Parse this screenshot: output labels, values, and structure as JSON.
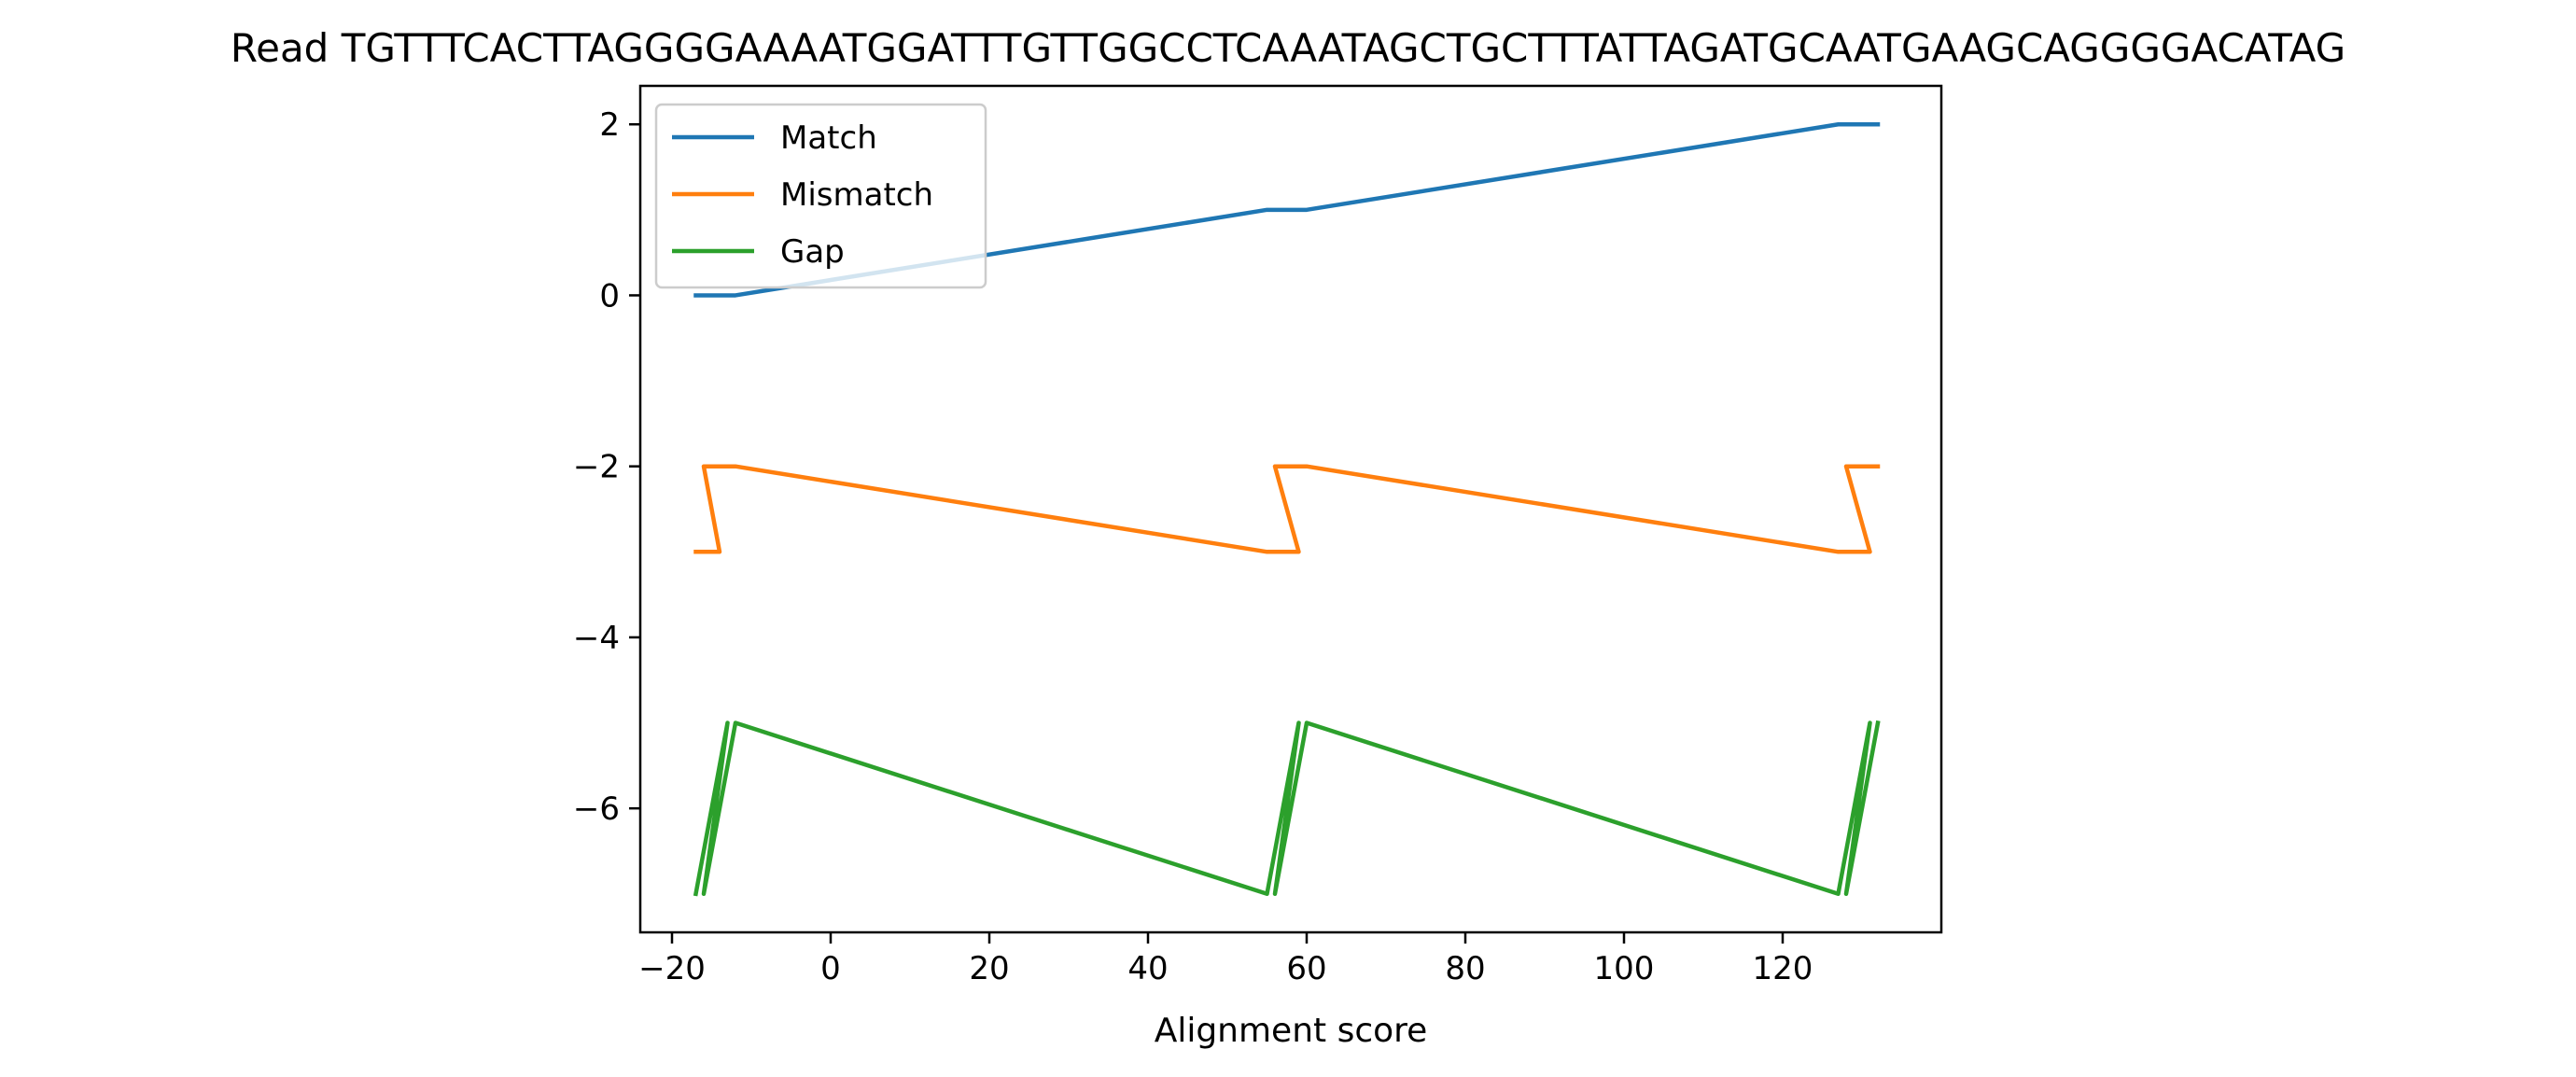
{
  "chart_data": {
    "type": "line",
    "title": "Read TGTTTCACTTAGGGGAAAATGGATTTGTTGGCCTCAAATAGCTGCTTTATTAGATGCAATGAAGCAGGGGACATAG",
    "xlabel": "Alignment score",
    "ylabel": "",
    "xlim": [
      -24,
      140
    ],
    "ylim": [
      -7.45,
      2.45
    ],
    "xticks": [
      -20,
      0,
      20,
      40,
      60,
      80,
      100,
      120
    ],
    "xtick_labels": [
      "−20",
      "0",
      "20",
      "40",
      "60",
      "80",
      "100",
      "120"
    ],
    "yticks": [
      -6,
      -4,
      -2,
      0,
      2
    ],
    "ytick_labels": [
      "−6",
      "−4",
      "−2",
      "0",
      "2"
    ],
    "grid": false,
    "legend_position": "upper-left",
    "series": [
      {
        "name": "Match",
        "color": "#1f77b4",
        "x": [
          -17,
          -16,
          -15,
          -14,
          -13,
          -12,
          55,
          56,
          57,
          58,
          59,
          60,
          127,
          128,
          129,
          130,
          131,
          132
        ],
        "y": [
          0,
          0,
          0,
          0,
          0,
          0,
          1,
          1,
          1,
          1,
          1,
          1,
          2,
          2,
          2,
          2,
          2,
          2
        ]
      },
      {
        "name": "Mismatch",
        "color": "#ff7f0e",
        "x": [
          -17,
          -14,
          -16,
          -12,
          55,
          59,
          56,
          60,
          127,
          131,
          128,
          132
        ],
        "y": [
          -3,
          -3,
          -2,
          -2,
          -3,
          -3,
          -2,
          -2,
          -3,
          -3,
          -2,
          -2
        ]
      },
      {
        "name": "Gap",
        "color": "#2ca02c",
        "x": [
          -17,
          -13,
          -16,
          -12,
          55,
          59,
          56,
          60,
          127,
          131,
          128,
          132
        ],
        "y": [
          -7,
          -5,
          -7,
          -5,
          -7,
          -5,
          -7,
          -5,
          -7,
          -5,
          -7,
          -5
        ]
      }
    ]
  }
}
